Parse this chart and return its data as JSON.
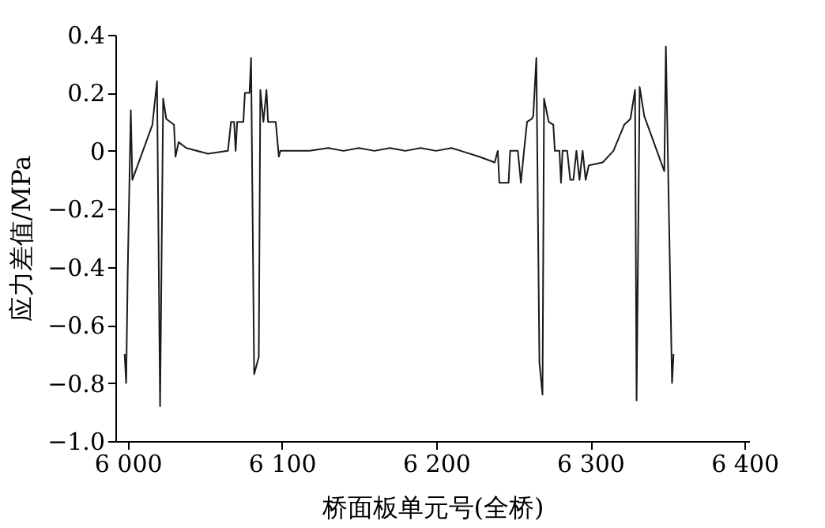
{
  "chart_data": {
    "type": "line",
    "xlabel": "桥面板单元号(全桥)",
    "ylabel": "应力差值/MPa",
    "x": [
      5998,
      5999,
      6000,
      6002,
      6003,
      6016,
      6019,
      6021,
      6023,
      6025,
      6030,
      6031,
      6033,
      6038,
      6052,
      6065,
      6067,
      6069,
      6070,
      6071,
      6075,
      6076,
      6079,
      6080,
      6082,
      6085,
      6086,
      6088,
      6090,
      6091,
      6096,
      6098,
      6099,
      6118,
      6130,
      6140,
      6150,
      6160,
      6170,
      6180,
      6190,
      6200,
      6210,
      6216,
      6228,
      6238,
      6240,
      6241,
      6243,
      6247,
      6248,
      6253,
      6255,
      6257,
      6259,
      6262,
      6263,
      6265,
      6267,
      6269,
      6270,
      6273,
      6276,
      6277,
      6280,
      6281,
      6282,
      6285,
      6287,
      6289,
      6291,
      6293,
      6295,
      6297,
      6299,
      6308,
      6315,
      6322,
      6326,
      6329,
      6330,
      6332,
      6335,
      6348,
      6349,
      6353,
      6354
    ],
    "series": [
      {
        "color": "#1a1a1a",
        "values": [
          -0.7,
          -0.8,
          -0.42,
          0.14,
          -0.1,
          0.09,
          0.24,
          -0.88,
          0.18,
          0.11,
          0.09,
          -0.02,
          0.03,
          0.01,
          -0.01,
          0,
          0.1,
          0.1,
          0,
          0.1,
          0.1,
          0.2,
          0.2,
          0.32,
          -0.77,
          -0.71,
          0.21,
          0.1,
          0.21,
          0.1,
          0.1,
          -0.02,
          0,
          0,
          0.01,
          0,
          0.01,
          0,
          0.01,
          0,
          0.01,
          0,
          0.01,
          0,
          -0.02,
          -0.04,
          0,
          -0.11,
          -0.11,
          -0.11,
          0,
          0,
          -0.11,
          0,
          0.1,
          0.11,
          0.12,
          0.32,
          -0.73,
          -0.84,
          0.18,
          0.1,
          0.09,
          0,
          0,
          -0.11,
          0,
          0,
          -0.1,
          -0.1,
          0,
          -0.1,
          0,
          -0.1,
          -0.05,
          -0.04,
          0,
          0.09,
          0.11,
          0.21,
          -0.86,
          0.22,
          0.12,
          -0.07,
          0.36,
          -0.8,
          -0.7
        ]
      }
    ],
    "xlim": [
      5992,
      6403
    ],
    "ylim": [
      -1.0,
      0.4
    ],
    "xticks": [
      {
        "value": 6000,
        "label": "6 000"
      },
      {
        "value": 6100,
        "label": "6 100"
      },
      {
        "value": 6200,
        "label": "6 200"
      },
      {
        "value": 6300,
        "label": "6 300"
      },
      {
        "value": 6400,
        "label": "6 400"
      }
    ],
    "yticks": [
      {
        "value": -1.0,
        "label": "−1.0"
      },
      {
        "value": -0.8,
        "label": "−0.8"
      },
      {
        "value": -0.6,
        "label": "−0.6"
      },
      {
        "value": -0.4,
        "label": "−0.4"
      },
      {
        "value": -0.2,
        "label": "−0.2"
      },
      0,
      0.2,
      0.4
    ],
    "grid": false,
    "marker": "none",
    "line_style": "solid"
  }
}
